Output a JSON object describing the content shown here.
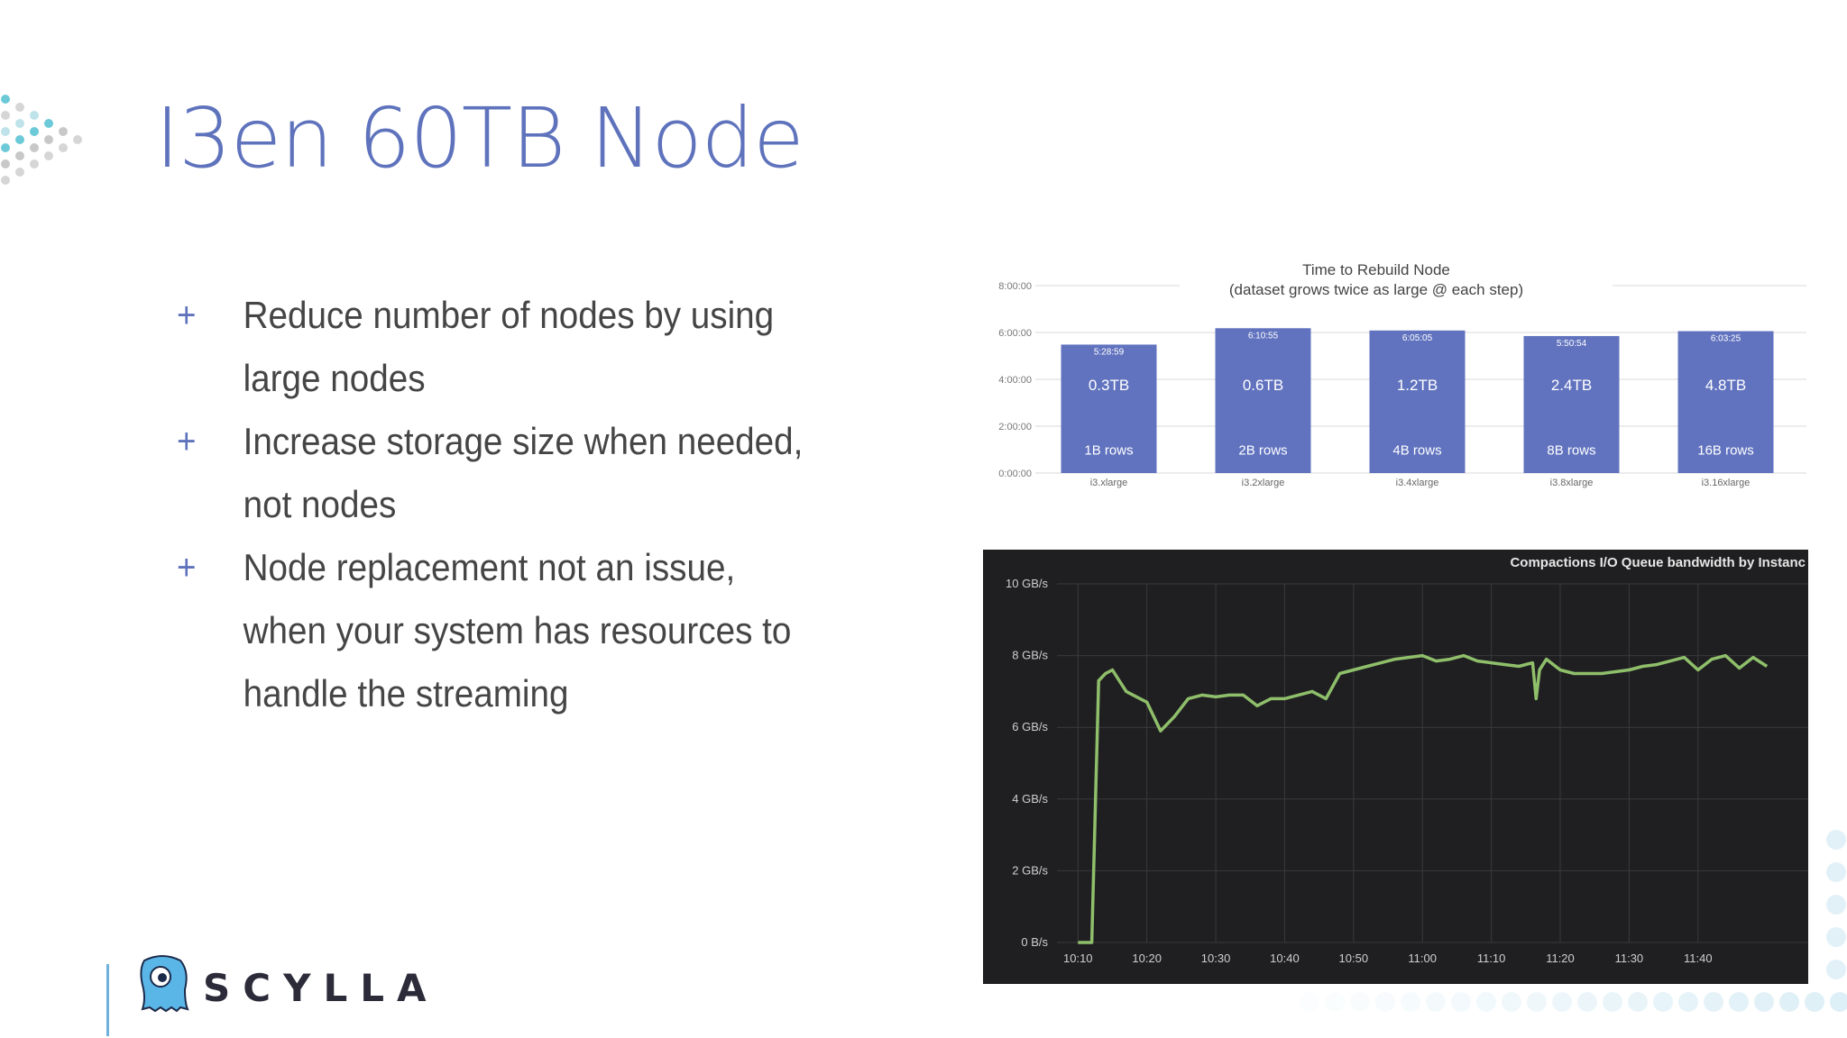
{
  "slide": {
    "title": "I3en 60TB Node",
    "bullets": [
      "Reduce number of nodes by using large nodes",
      "Increase storage size when needed, not nodes",
      "Node replacement not an issue, when your system has resources to handle the streaming"
    ],
    "bullet_marker": "+",
    "logo_text": "SCYLLA",
    "colors": {
      "title": "#5f73bd",
      "bar": "#6173bf",
      "line": "#8fbf6a",
      "dark_bg": "#1f1f21"
    }
  },
  "chart_data": [
    {
      "type": "bar",
      "title": "Time to Rebuild Node",
      "subtitle": "(dataset grows twice as large @ each step)",
      "categories": [
        "i3.xlarge",
        "i3.2xlarge",
        "i3.4xlarge",
        "i3.8xlarge",
        "i3.16xlarge"
      ],
      "values_seconds": [
        19739,
        22255,
        21905,
        21054,
        21805
      ],
      "value_labels": [
        "5:28:59",
        "6:10:55",
        "6:05:05",
        "5:50:54",
        "6:03:25"
      ],
      "size_labels": [
        "0.3TB",
        "0.6TB",
        "1.2TB",
        "2.4TB",
        "4.8TB"
      ],
      "row_labels": [
        "1B rows",
        "2B rows",
        "4B rows",
        "8B rows",
        "16B rows"
      ],
      "yticks": [
        "0:00:00",
        "2:00:00",
        "4:00:00",
        "6:00:00",
        "8:00:00"
      ],
      "ylim": [
        0,
        28800
      ],
      "grid": true
    },
    {
      "type": "line",
      "title": "Compactions I/O Queue bandwidth by Instanc",
      "yticks": [
        "0 B/s",
        "2 GB/s",
        "4 GB/s",
        "6 GB/s",
        "8 GB/s",
        "10 GB/s"
      ],
      "ylim": [
        0,
        10
      ],
      "y_unit": "GB/s",
      "xticks": [
        "10:10",
        "10:20",
        "10:30",
        "10:40",
        "10:50",
        "11:00",
        "11:10",
        "11:20",
        "11:30",
        "11:40"
      ],
      "x_minutes": [
        0,
        1,
        2,
        3,
        4,
        5,
        6,
        7,
        8,
        10,
        12,
        14,
        16,
        18,
        20,
        22,
        24,
        26,
        28,
        30,
        32,
        34,
        36,
        38,
        40,
        42,
        44,
        46,
        48,
        50,
        52,
        54,
        56,
        58,
        60,
        62,
        64,
        66,
        66.5,
        67,
        68,
        70,
        72,
        74,
        76,
        78,
        80,
        82,
        84,
        86,
        88,
        90,
        92,
        94,
        96,
        98,
        100
      ],
      "series": [
        {
          "values": [
            0,
            0,
            0,
            7.3,
            7.5,
            7.6,
            7.3,
            7.0,
            6.9,
            6.7,
            5.9,
            6.3,
            6.8,
            6.9,
            6.85,
            6.9,
            6.9,
            6.6,
            6.8,
            6.8,
            6.9,
            7.0,
            6.8,
            7.5,
            7.6,
            7.7,
            7.8,
            7.9,
            7.95,
            8.0,
            7.85,
            7.9,
            8.0,
            7.85,
            7.8,
            7.75,
            7.7,
            7.8,
            6.8,
            7.6,
            7.9,
            7.6,
            7.5,
            7.5,
            7.5,
            7.55,
            7.6,
            7.7,
            7.75,
            7.85,
            7.95,
            7.6,
            7.9,
            8.0,
            7.65,
            7.95,
            7.7
          ]
        }
      ],
      "grid": true
    }
  ]
}
